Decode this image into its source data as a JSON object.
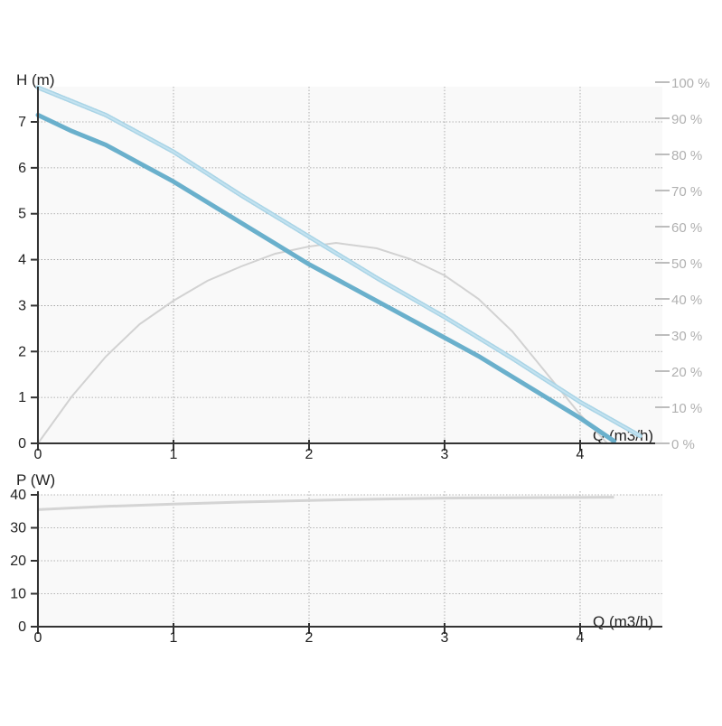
{
  "chart_data": [
    {
      "type": "line",
      "title": "",
      "xlabel": "Q (m3/h)",
      "ylabel": "H (m)",
      "y2label": "",
      "xlim": [
        0,
        4.6
      ],
      "ylim": [
        0,
        7.7
      ],
      "y2lim": [
        0,
        100
      ],
      "x_ticks": [
        "0",
        "1",
        "2",
        "3",
        "4"
      ],
      "y_ticks": [
        "0",
        "1",
        "2",
        "3",
        "4",
        "5",
        "6",
        "7"
      ],
      "y2_ticks": [
        "0 %",
        "10 %",
        "20 %",
        "30 %",
        "40 %",
        "50 %",
        "60 %",
        "70 %",
        "80 %",
        "90 %",
        "100 %"
      ],
      "grid": true,
      "series": [
        {
          "role": "head-curve",
          "axis": "left",
          "color": "#6ab0cc",
          "x": [
            0,
            0.25,
            0.5,
            0.75,
            1.0,
            1.25,
            1.5,
            1.75,
            2.0,
            2.25,
            2.5,
            2.75,
            3.0,
            3.25,
            3.5,
            3.75,
            4.0,
            4.25
          ],
          "y": [
            7.15,
            6.8,
            6.5,
            6.1,
            5.7,
            5.25,
            4.8,
            4.35,
            3.9,
            3.5,
            3.1,
            2.7,
            2.3,
            1.9,
            1.45,
            1.0,
            0.55,
            0.05
          ]
        },
        {
          "role": "head-curve-secondary",
          "axis": "left",
          "color": "#cfe8f3",
          "x": [
            0,
            0.5,
            1.0,
            1.5,
            2.0,
            2.5,
            3.0,
            3.5,
            4.0,
            4.45
          ],
          "y": [
            7.75,
            7.15,
            6.35,
            5.4,
            4.5,
            3.6,
            2.75,
            1.85,
            0.9,
            0.15
          ]
        },
        {
          "role": "efficiency-curve",
          "axis": "right",
          "color": "#d2d2d2",
          "x": [
            0,
            0.25,
            0.5,
            0.75,
            1.0,
            1.25,
            1.5,
            1.75,
            2.0,
            2.2,
            2.5,
            2.75,
            3.0,
            3.25,
            3.5,
            3.75,
            4.0,
            4.2
          ],
          "y": [
            0,
            13,
            24,
            33,
            39.5,
            45,
            49,
            52.5,
            54.5,
            55.5,
            54,
            51,
            46.5,
            40,
            31,
            19.5,
            8,
            0
          ]
        }
      ]
    },
    {
      "type": "line",
      "title": "",
      "xlabel": "Q (m3/h)",
      "ylabel": "P (W)",
      "xlim": [
        0,
        4.6
      ],
      "ylim": [
        0,
        43
      ],
      "x_ticks": [
        "0",
        "1",
        "2",
        "3",
        "4"
      ],
      "y_ticks": [
        "0",
        "10",
        "20",
        "30",
        "40"
      ],
      "grid": true,
      "series": [
        {
          "role": "power-curve",
          "color": "#d4d4d4",
          "x": [
            0,
            0.5,
            1.0,
            1.5,
            2.0,
            2.5,
            3.0,
            3.5,
            4.0,
            4.25
          ],
          "y": [
            35.5,
            36.5,
            37.2,
            37.8,
            38.3,
            38.7,
            39.0,
            39.1,
            39.2,
            39.3
          ]
        }
      ]
    }
  ]
}
